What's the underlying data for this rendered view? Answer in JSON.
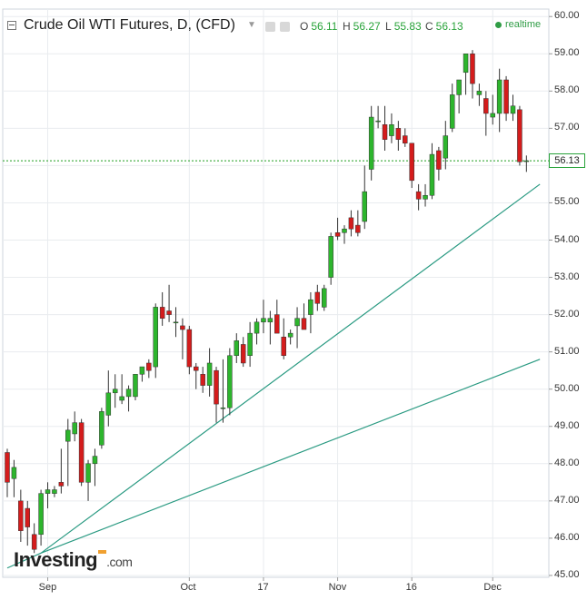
{
  "header": {
    "title": "Crude Oil WTI Futures, D, (CFD)",
    "ohlc": [
      {
        "key": "O",
        "value": "56.11"
      },
      {
        "key": "H",
        "value": "56.27"
      },
      {
        "key": "L",
        "value": "55.83"
      },
      {
        "key": "C",
        "value": "56.13"
      }
    ],
    "realtime_label": "realtime"
  },
  "price_tag": "56.13",
  "logo": {
    "text": "Investing",
    "domain": ".com"
  },
  "colors": {
    "up": "#2db52d",
    "down": "#d41c1c",
    "trend": "#2a9a82",
    "grid": "#e9ecef",
    "last_price": "#1e9e1e"
  },
  "chart_data": {
    "type": "candlestick",
    "title": "Crude Oil WTI Futures, D, (CFD)",
    "xlabel": "",
    "ylabel": "",
    "ylim": [
      44.95,
      60.2
    ],
    "y_ticks": [
      "60.00",
      "59.00",
      "58.00",
      "57.00",
      "56.00",
      "55.00",
      "54.00",
      "53.00",
      "52.00",
      "51.00",
      "50.00",
      "49.00",
      "48.00",
      "47.00",
      "46.00",
      "45.00"
    ],
    "x_ticks": [
      {
        "label": "Sep",
        "index": 6
      },
      {
        "label": "Oct",
        "index": 27
      },
      {
        "label": "17",
        "index": 38
      },
      {
        "label": "Nov",
        "index": 49
      },
      {
        "label": "16",
        "index": 60
      },
      {
        "label": "Dec",
        "index": 72
      }
    ],
    "last_price": 56.13,
    "grid": true,
    "candles": [
      [
        48.3,
        48.4,
        47.1,
        47.5
      ],
      [
        47.6,
        48.1,
        47.1,
        47.9
      ],
      [
        47.0,
        47.3,
        45.9,
        46.2
      ],
      [
        46.8,
        47.0,
        45.8,
        46.3
      ],
      [
        46.1,
        46.4,
        45.6,
        45.7
      ],
      [
        46.1,
        47.3,
        45.8,
        47.2
      ],
      [
        47.2,
        47.5,
        46.8,
        47.3
      ],
      [
        47.2,
        47.4,
        47.1,
        47.3
      ],
      [
        47.5,
        48.4,
        47.2,
        47.4
      ],
      [
        48.6,
        49.2,
        47.4,
        48.9
      ],
      [
        48.8,
        49.4,
        48.6,
        49.1
      ],
      [
        49.1,
        49.2,
        47.4,
        47.5
      ],
      [
        47.5,
        48.1,
        47.0,
        48.0
      ],
      [
        48.0,
        48.4,
        47.4,
        48.2
      ],
      [
        48.5,
        49.5,
        48.4,
        49.4
      ],
      [
        49.3,
        50.5,
        49.0,
        49.9
      ],
      [
        49.9,
        50.4,
        49.5,
        50.0
      ],
      [
        49.7,
        50.4,
        49.6,
        49.8
      ],
      [
        49.8,
        50.1,
        49.4,
        50.0
      ],
      [
        49.8,
        50.4,
        49.7,
        50.4
      ],
      [
        50.4,
        50.6,
        50.2,
        50.6
      ],
      [
        50.7,
        50.8,
        50.3,
        50.5
      ],
      [
        50.6,
        52.3,
        50.3,
        52.2
      ],
      [
        52.2,
        52.6,
        51.7,
        51.9
      ],
      [
        52.1,
        52.8,
        51.8,
        52.0
      ],
      [
        51.8,
        52.2,
        51.4,
        51.8
      ],
      [
        51.7,
        51.9,
        50.8,
        51.6
      ],
      [
        51.6,
        51.7,
        50.4,
        50.6
      ],
      [
        50.6,
        50.7,
        50.0,
        50.5
      ],
      [
        50.4,
        50.6,
        49.9,
        50.1
      ],
      [
        50.1,
        51.1,
        49.8,
        50.7
      ],
      [
        50.5,
        50.6,
        49.1,
        49.6
      ],
      [
        49.5,
        50.8,
        49.1,
        49.5
      ],
      [
        49.5,
        51.1,
        49.3,
        50.9
      ],
      [
        50.9,
        51.5,
        50.7,
        51.3
      ],
      [
        51.2,
        51.4,
        50.6,
        50.7
      ],
      [
        50.9,
        51.8,
        50.6,
        51.5
      ],
      [
        51.5,
        51.9,
        51.2,
        51.8
      ],
      [
        51.8,
        52.4,
        51.5,
        51.9
      ],
      [
        51.8,
        52.1,
        51.2,
        51.9
      ],
      [
        52.0,
        52.4,
        51.6,
        51.5
      ],
      [
        51.4,
        51.9,
        50.8,
        50.9
      ],
      [
        51.4,
        51.6,
        51.2,
        51.5
      ],
      [
        51.7,
        52.2,
        51.1,
        51.9
      ],
      [
        51.9,
        52.3,
        51.6,
        51.6
      ],
      [
        52.0,
        52.6,
        51.5,
        52.4
      ],
      [
        52.6,
        52.8,
        52.1,
        52.3
      ],
      [
        52.2,
        52.8,
        52.1,
        52.7
      ],
      [
        53.0,
        54.2,
        52.8,
        54.1
      ],
      [
        54.2,
        54.6,
        54.0,
        54.1
      ],
      [
        54.2,
        54.4,
        53.9,
        54.3
      ],
      [
        54.6,
        54.8,
        54.1,
        54.3
      ],
      [
        54.4,
        54.8,
        54.1,
        54.2
      ],
      [
        54.5,
        56.0,
        54.3,
        55.3
      ],
      [
        55.9,
        57.6,
        55.6,
        57.3
      ],
      [
        57.2,
        57.6,
        57.0,
        57.2
      ],
      [
        57.1,
        57.6,
        56.4,
        56.7
      ],
      [
        56.8,
        57.4,
        56.6,
        57.1
      ],
      [
        57.0,
        57.2,
        56.4,
        56.7
      ],
      [
        56.8,
        57.0,
        56.5,
        56.6
      ],
      [
        56.6,
        56.6,
        55.4,
        55.6
      ],
      [
        55.3,
        55.5,
        54.8,
        55.1
      ],
      [
        55.1,
        55.5,
        54.9,
        55.2
      ],
      [
        55.2,
        56.6,
        55.1,
        56.3
      ],
      [
        56.4,
        56.5,
        55.6,
        55.9
      ],
      [
        56.2,
        57.2,
        55.9,
        56.8
      ],
      [
        57.0,
        58.2,
        56.9,
        57.9
      ],
      [
        57.9,
        58.3,
        57.4,
        58.3
      ],
      [
        58.5,
        59.0,
        57.9,
        59.0
      ],
      [
        59.0,
        59.1,
        57.8,
        58.2
      ],
      [
        57.9,
        58.2,
        57.6,
        58.0
      ],
      [
        57.8,
        58.0,
        56.8,
        57.4
      ],
      [
        57.3,
        57.9,
        57.1,
        57.4
      ],
      [
        57.4,
        58.6,
        56.9,
        58.3
      ],
      [
        58.3,
        58.4,
        57.2,
        57.4
      ],
      [
        57.4,
        57.9,
        57.2,
        57.6
      ],
      [
        57.5,
        57.6,
        56.0,
        56.1
      ],
      [
        56.11,
        56.27,
        55.83,
        56.13
      ]
    ],
    "trendlines": [
      {
        "from": {
          "index": 5,
          "value": 45.6
        },
        "to": {
          "index": 79,
          "value": 55.5
        }
      },
      {
        "from": {
          "index": 5,
          "value": 45.6
        },
        "to": {
          "index": 79,
          "value": 50.8
        }
      },
      {
        "from": {
          "index": 0,
          "value": 45.2
        },
        "to": {
          "index": 5,
          "value": 45.6
        }
      }
    ]
  }
}
